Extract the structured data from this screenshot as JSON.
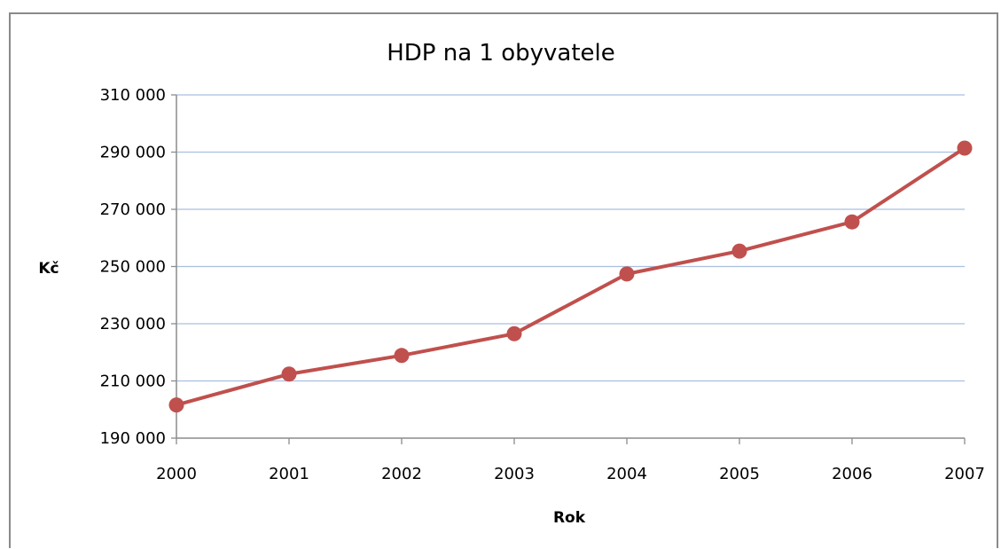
{
  "chart_data": {
    "type": "line",
    "title": "HDP na 1 obyvatele",
    "xlabel": "Rok",
    "ylabel": "Kč",
    "categories": [
      "2000",
      "2001",
      "2002",
      "2003",
      "2004",
      "2005",
      "2006",
      "2007"
    ],
    "series": [
      {
        "values": [
          201600,
          212400,
          218900,
          226500,
          247400,
          255400,
          265600,
          291400
        ]
      }
    ],
    "ylim": [
      190000,
      310000
    ],
    "yticks": [
      "190 000",
      "210 000",
      "230 000",
      "250 000",
      "270 000",
      "290 000",
      "310 000"
    ],
    "ytick_values": [
      190000,
      210000,
      230000,
      250000,
      270000,
      290000,
      310000
    ],
    "grid": "horizontal",
    "legend": "none",
    "colors": {
      "line": "#c0504d",
      "grid": "#a9bfe0",
      "axis": "#8c8c8c"
    }
  }
}
